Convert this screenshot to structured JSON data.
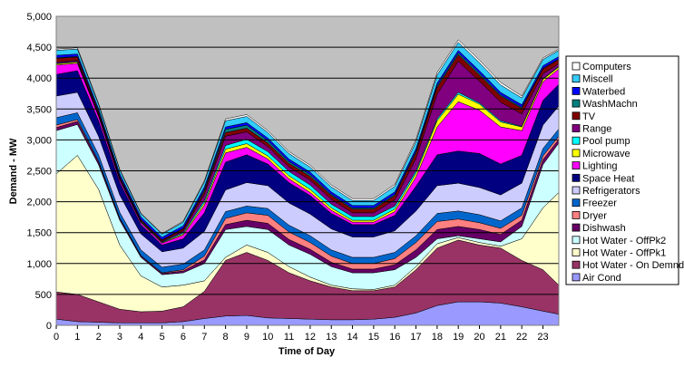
{
  "chart_data": {
    "type": "stacked_area",
    "x_label": "Time of Day",
    "y_label": "Demand - MW",
    "x": [
      0,
      1,
      2,
      3,
      4,
      5,
      6,
      7,
      8,
      9,
      10,
      11,
      12,
      13,
      14,
      15,
      16,
      17,
      18,
      19,
      20,
      21,
      22,
      23,
      23.75
    ],
    "xlim": [
      0,
      23.75
    ],
    "xticks": [
      0,
      1,
      2,
      3,
      4,
      5,
      6,
      7,
      8,
      9,
      10,
      11,
      12,
      13,
      14,
      15,
      16,
      17,
      18,
      19,
      20,
      21,
      22,
      23
    ],
    "ylim": [
      0,
      5000
    ],
    "yticks": [
      0,
      500,
      {
        "value": 1000,
        "label": "1,000"
      },
      {
        "value": 1500,
        "label": "1,500"
      },
      {
        "value": 2000,
        "label": "2,000"
      },
      {
        "value": 2500,
        "label": "2,500"
      },
      {
        "value": 3000,
        "label": "3,000"
      },
      {
        "value": 3500,
        "label": "3,500"
      },
      {
        "value": 4000,
        "label": "4,000"
      },
      {
        "value": 4500,
        "label": "4,500"
      },
      {
        "value": 5000,
        "label": "5,000"
      }
    ],
    "grid": true,
    "legend": "right",
    "series": [
      {
        "name": "Air Cond",
        "color": "#9999ff",
        "values": [
          100,
          60,
          50,
          40,
          40,
          40,
          60,
          110,
          150,
          160,
          120,
          110,
          100,
          90,
          90,
          100,
          130,
          200,
          320,
          380,
          380,
          360,
          300,
          230,
          180
        ]
      },
      {
        "name": "Hot Water - On Demnd",
        "color": "#993366",
        "values": [
          440,
          440,
          330,
          220,
          180,
          190,
          240,
          440,
          900,
          1020,
          930,
          740,
          620,
          530,
          470,
          460,
          490,
          700,
          930,
          1000,
          920,
          890,
          750,
          670,
          470
        ]
      },
      {
        "name": "Hot Water - OffPk1",
        "color": "#ffffcc",
        "values": [
          1910,
          2250,
          1820,
          1040,
          580,
          390,
          350,
          170,
          50,
          120,
          130,
          100,
          60,
          30,
          30,
          20,
          30,
          50,
          70,
          40,
          40,
          30,
          350,
          1000,
          1500
        ]
      },
      {
        "name": "Hot Water - OffPk2",
        "color": "#ccffff",
        "values": [
          700,
          500,
          400,
          400,
          300,
          200,
          200,
          280,
          450,
          300,
          370,
          350,
          370,
          300,
          260,
          270,
          250,
          150,
          80,
          30,
          60,
          70,
          200,
          700,
          800
        ]
      },
      {
        "name": "Dishwash",
        "color": "#660066",
        "values": [
          50,
          50,
          40,
          30,
          20,
          20,
          30,
          60,
          80,
          100,
          100,
          90,
          80,
          70,
          60,
          60,
          80,
          120,
          150,
          150,
          150,
          120,
          100,
          80,
          60
        ]
      },
      {
        "name": "Dryer",
        "color": "#ff8080",
        "values": [
          40,
          30,
          20,
          10,
          10,
          10,
          20,
          60,
          100,
          120,
          130,
          120,
          110,
          100,
          90,
          90,
          100,
          120,
          130,
          120,
          110,
          100,
          80,
          60,
          50
        ]
      },
      {
        "name": "Freezer",
        "color": "#0066cc",
        "values": [
          120,
          110,
          100,
          90,
          90,
          90,
          90,
          100,
          110,
          110,
          110,
          110,
          110,
          100,
          100,
          100,
          100,
          110,
          130,
          130,
          130,
          120,
          120,
          120,
          120
        ]
      },
      {
        "name": "Refrigerators",
        "color": "#ccccff",
        "values": [
          350,
          330,
          300,
          280,
          260,
          250,
          260,
          300,
          350,
          380,
          370,
          360,
          350,
          340,
          330,
          330,
          350,
          400,
          450,
          450,
          440,
          420,
          400,
          380,
          370
        ]
      },
      {
        "name": "Space Heat",
        "color": "#000080",
        "values": [
          350,
          350,
          250,
          200,
          150,
          110,
          150,
          300,
          450,
          450,
          350,
          330,
          300,
          250,
          200,
          200,
          250,
          400,
          500,
          520,
          550,
          500,
          450,
          400,
          350
        ]
      },
      {
        "name": "Lighting",
        "color": "#ff00ff",
        "values": [
          150,
          120,
          70,
          40,
          30,
          30,
          60,
          120,
          150,
          120,
          80,
          60,
          50,
          50,
          40,
          40,
          60,
          150,
          450,
          800,
          700,
          600,
          400,
          300,
          250
        ]
      },
      {
        "name": "Microwave",
        "color": "#ffff00",
        "values": [
          20,
          20,
          10,
          10,
          10,
          10,
          20,
          40,
          60,
          60,
          50,
          50,
          50,
          40,
          30,
          30,
          40,
          60,
          100,
          120,
          100,
          80,
          60,
          40,
          30
        ]
      },
      {
        "name": "Pool pump",
        "color": "#00ffff",
        "values": [
          10,
          10,
          10,
          10,
          10,
          10,
          20,
          40,
          60,
          70,
          70,
          70,
          70,
          60,
          60,
          60,
          50,
          40,
          30,
          30,
          20,
          20,
          10,
          10,
          10
        ]
      },
      {
        "name": "Range",
        "color": "#800080",
        "values": [
          20,
          20,
          20,
          10,
          10,
          10,
          30,
          100,
          150,
          120,
          80,
          70,
          80,
          80,
          60,
          60,
          100,
          200,
          400,
          500,
          350,
          300,
          200,
          80,
          40
        ]
      },
      {
        "name": "TV",
        "color": "#800000",
        "values": [
          60,
          50,
          40,
          30,
          20,
          20,
          30,
          50,
          60,
          60,
          60,
          60,
          60,
          60,
          60,
          60,
          70,
          90,
          110,
          110,
          100,
          100,
          90,
          80,
          70
        ]
      },
      {
        "name": "WashMachn",
        "color": "#008080",
        "values": [
          10,
          10,
          5,
          5,
          5,
          5,
          10,
          30,
          50,
          50,
          40,
          30,
          30,
          20,
          20,
          20,
          20,
          30,
          30,
          30,
          30,
          20,
          20,
          10,
          10
        ]
      },
      {
        "name": "Waterbed",
        "color": "#0000ff",
        "values": [
          40,
          40,
          40,
          40,
          40,
          40,
          40,
          40,
          40,
          40,
          40,
          40,
          40,
          40,
          40,
          40,
          40,
          40,
          40,
          40,
          40,
          40,
          40,
          40,
          40
        ]
      },
      {
        "name": "Miscell",
        "color": "#33ccff",
        "values": [
          80,
          80,
          70,
          60,
          50,
          50,
          60,
          80,
          100,
          100,
          90,
          90,
          80,
          80,
          80,
          80,
          90,
          110,
          130,
          130,
          130,
          120,
          110,
          100,
          100
        ]
      },
      {
        "name": "Computers",
        "color": "#ffffff",
        "values": [
          20,
          20,
          15,
          10,
          10,
          10,
          15,
          20,
          30,
          30,
          30,
          30,
          30,
          30,
          30,
          30,
          30,
          40,
          40,
          40,
          40,
          40,
          30,
          25,
          20
        ]
      }
    ]
  }
}
